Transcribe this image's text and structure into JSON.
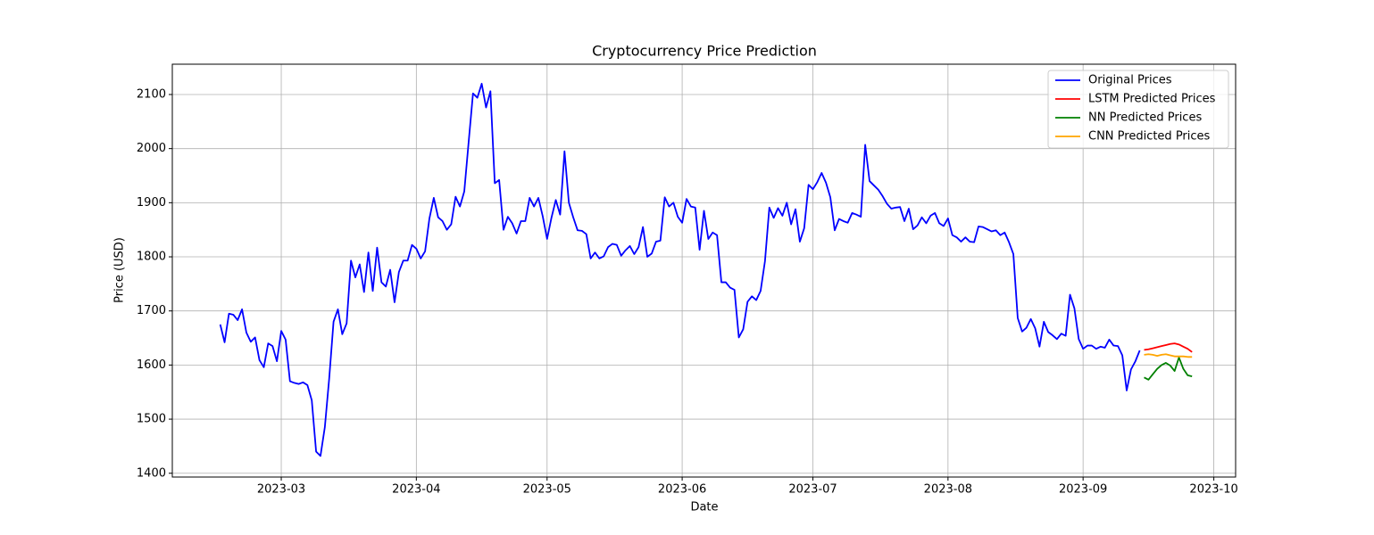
{
  "chart_data": {
    "type": "line",
    "title": "Cryptocurrency Price Prediction",
    "xlabel": "Date",
    "ylabel": "Price (USD)",
    "grid": true,
    "legend": "upper right",
    "xlim": [
      "2023-02-04",
      "2023-10-06"
    ],
    "ylim": [
      1393,
      2156
    ],
    "xticks": [
      {
        "value": "2023-03-01",
        "label": "2023-03"
      },
      {
        "value": "2023-04-01",
        "label": "2023-04"
      },
      {
        "value": "2023-05-01",
        "label": "2023-05"
      },
      {
        "value": "2023-06-01",
        "label": "2023-06"
      },
      {
        "value": "2023-07-01",
        "label": "2023-07"
      },
      {
        "value": "2023-08-01",
        "label": "2023-08"
      },
      {
        "value": "2023-09-01",
        "label": "2023-09"
      },
      {
        "value": "2023-10-01",
        "label": "2023-10"
      }
    ],
    "yticks": [
      1400,
      1500,
      1600,
      1700,
      1800,
      1900,
      2000,
      2100
    ],
    "series": [
      {
        "name": "Original Prices",
        "color": "#0000ff",
        "x": [
          "2023-02-15",
          "2023-02-16",
          "2023-02-17",
          "2023-02-18",
          "2023-02-19",
          "2023-02-20",
          "2023-02-21",
          "2023-02-22",
          "2023-02-23",
          "2023-02-24",
          "2023-02-25",
          "2023-02-26",
          "2023-02-27",
          "2023-02-28",
          "2023-03-01",
          "2023-03-02",
          "2023-03-03",
          "2023-03-04",
          "2023-03-05",
          "2023-03-06",
          "2023-03-07",
          "2023-03-08",
          "2023-03-09",
          "2023-03-10",
          "2023-03-11",
          "2023-03-12",
          "2023-03-13",
          "2023-03-14",
          "2023-03-15",
          "2023-03-16",
          "2023-03-17",
          "2023-03-18",
          "2023-03-19",
          "2023-03-20",
          "2023-03-21",
          "2023-03-22",
          "2023-03-23",
          "2023-03-24",
          "2023-03-25",
          "2023-03-26",
          "2023-03-27",
          "2023-03-28",
          "2023-03-29",
          "2023-03-30",
          "2023-03-31",
          "2023-04-01",
          "2023-04-02",
          "2023-04-03",
          "2023-04-04",
          "2023-04-05",
          "2023-04-06",
          "2023-04-07",
          "2023-04-08",
          "2023-04-09",
          "2023-04-10",
          "2023-04-11",
          "2023-04-12",
          "2023-04-13",
          "2023-04-14",
          "2023-04-15",
          "2023-04-16",
          "2023-04-17",
          "2023-04-18",
          "2023-04-19",
          "2023-04-20",
          "2023-04-21",
          "2023-04-22",
          "2023-04-23",
          "2023-04-24",
          "2023-04-25",
          "2023-04-26",
          "2023-04-27",
          "2023-04-28",
          "2023-04-29",
          "2023-04-30",
          "2023-05-01",
          "2023-05-02",
          "2023-05-03",
          "2023-05-04",
          "2023-05-05",
          "2023-05-06",
          "2023-05-07",
          "2023-05-08",
          "2023-05-09",
          "2023-05-10",
          "2023-05-11",
          "2023-05-12",
          "2023-05-13",
          "2023-05-14",
          "2023-05-15",
          "2023-05-16",
          "2023-05-17",
          "2023-05-18",
          "2023-05-19",
          "2023-05-20",
          "2023-05-21",
          "2023-05-22",
          "2023-05-23",
          "2023-05-24",
          "2023-05-25",
          "2023-05-26",
          "2023-05-27",
          "2023-05-28",
          "2023-05-29",
          "2023-05-30",
          "2023-05-31",
          "2023-06-01",
          "2023-06-02",
          "2023-06-03",
          "2023-06-04",
          "2023-06-05",
          "2023-06-06",
          "2023-06-07",
          "2023-06-08",
          "2023-06-09",
          "2023-06-10",
          "2023-06-11",
          "2023-06-12",
          "2023-06-13",
          "2023-06-14",
          "2023-06-15",
          "2023-06-16",
          "2023-06-17",
          "2023-06-18",
          "2023-06-19",
          "2023-06-20",
          "2023-06-21",
          "2023-06-22",
          "2023-06-23",
          "2023-06-24",
          "2023-06-25",
          "2023-06-26",
          "2023-06-27",
          "2023-06-28",
          "2023-06-29",
          "2023-06-30",
          "2023-07-01",
          "2023-07-02",
          "2023-07-03",
          "2023-07-04",
          "2023-07-05",
          "2023-07-06",
          "2023-07-07",
          "2023-07-08",
          "2023-07-09",
          "2023-07-10",
          "2023-07-11",
          "2023-07-12",
          "2023-07-13",
          "2023-07-14",
          "2023-07-15",
          "2023-07-16",
          "2023-07-17",
          "2023-07-18",
          "2023-07-19",
          "2023-07-20",
          "2023-07-21",
          "2023-07-22",
          "2023-07-23",
          "2023-07-24",
          "2023-07-25",
          "2023-07-26",
          "2023-07-27",
          "2023-07-28",
          "2023-07-29",
          "2023-07-30",
          "2023-07-31",
          "2023-08-01",
          "2023-08-02",
          "2023-08-03",
          "2023-08-04",
          "2023-08-05",
          "2023-08-06",
          "2023-08-07",
          "2023-08-08",
          "2023-08-09",
          "2023-08-10",
          "2023-08-11",
          "2023-08-12",
          "2023-08-13",
          "2023-08-14",
          "2023-08-15",
          "2023-08-16",
          "2023-08-17",
          "2023-08-18",
          "2023-08-19",
          "2023-08-20",
          "2023-08-21",
          "2023-08-22",
          "2023-08-23",
          "2023-08-24",
          "2023-08-25",
          "2023-08-26",
          "2023-08-27",
          "2023-08-28",
          "2023-08-29",
          "2023-08-30",
          "2023-08-31",
          "2023-09-01",
          "2023-09-02",
          "2023-09-03",
          "2023-09-04",
          "2023-09-05",
          "2023-09-06",
          "2023-09-07",
          "2023-09-08",
          "2023-09-09",
          "2023-09-10",
          "2023-09-11",
          "2023-09-12",
          "2023-09-13",
          "2023-09-14"
        ],
        "values": [
          1675,
          1642,
          1695,
          1693,
          1683,
          1703,
          1660,
          1643,
          1651,
          1609,
          1596,
          1640,
          1635,
          1607,
          1663,
          1647,
          1570,
          1567,
          1565,
          1568,
          1563,
          1535,
          1440,
          1432,
          1485,
          1575,
          1680,
          1703,
          1657,
          1677,
          1793,
          1762,
          1786,
          1735,
          1808,
          1737,
          1817,
          1753,
          1745,
          1776,
          1716,
          1772,
          1793,
          1793,
          1822,
          1815,
          1797,
          1810,
          1871,
          1909,
          1873,
          1866,
          1850,
          1860,
          1911,
          1893,
          1921,
          2012,
          2102,
          2094,
          2120,
          2076,
          2106,
          1936,
          1942,
          1850,
          1874,
          1862,
          1843,
          1866,
          1866,
          1909,
          1893,
          1909,
          1875,
          1833,
          1872,
          1905,
          1878,
          1995,
          1900,
          1873,
          1849,
          1848,
          1842,
          1797,
          1808,
          1797,
          1801,
          1818,
          1824,
          1822,
          1802,
          1812,
          1820,
          1805,
          1818,
          1855,
          1800,
          1806,
          1828,
          1830,
          1910,
          1893,
          1900,
          1874,
          1863,
          1907,
          1893,
          1891,
          1813,
          1885,
          1833,
          1845,
          1840,
          1753,
          1753,
          1743,
          1739,
          1651,
          1666,
          1717,
          1727,
          1720,
          1737,
          1792,
          1891,
          1872,
          1890,
          1876,
          1900,
          1860,
          1888,
          1828,
          1853,
          1933,
          1925,
          1938,
          1955,
          1937,
          1910,
          1849,
          1870,
          1866,
          1863,
          1881,
          1878,
          1874,
          2007,
          1940,
          1932,
          1924,
          1912,
          1898,
          1889,
          1891,
          1892,
          1866,
          1889,
          1851,
          1858,
          1873,
          1862,
          1876,
          1881,
          1862,
          1857,
          1871,
          1840,
          1836,
          1828,
          1836,
          1828,
          1827,
          1856,
          1855,
          1851,
          1847,
          1849,
          1840,
          1845,
          1827,
          1805,
          1687,
          1662,
          1669,
          1685,
          1668,
          1634,
          1680,
          1661,
          1655,
          1648,
          1658,
          1654,
          1730,
          1705,
          1648,
          1630,
          1636,
          1636,
          1630,
          1634,
          1632,
          1647,
          1636,
          1635,
          1618,
          1553,
          1592,
          1607,
          1627
        ]
      },
      {
        "name": "LSTM Predicted Prices",
        "color": "#ff0000",
        "x": [
          "2023-09-15",
          "2023-09-16",
          "2023-09-17",
          "2023-09-18",
          "2023-09-19",
          "2023-09-20",
          "2023-09-21",
          "2023-09-22",
          "2023-09-23",
          "2023-09-24",
          "2023-09-25",
          "2023-09-26"
        ],
        "values": [
          1628,
          1629,
          1631,
          1633,
          1635,
          1637,
          1639,
          1640,
          1638,
          1634,
          1630,
          1624
        ]
      },
      {
        "name": "NN Predicted Prices",
        "color": "#008000",
        "x": [
          "2023-09-15",
          "2023-09-16",
          "2023-09-17",
          "2023-09-18",
          "2023-09-19",
          "2023-09-20",
          "2023-09-21",
          "2023-09-22",
          "2023-09-23",
          "2023-09-24",
          "2023-09-25",
          "2023-09-26"
        ],
        "values": [
          1577,
          1573,
          1583,
          1593,
          1600,
          1604,
          1599,
          1589,
          1614,
          1593,
          1581,
          1579
        ]
      },
      {
        "name": "CNN Predicted Prices",
        "color": "#ffa500",
        "x": [
          "2023-09-15",
          "2023-09-16",
          "2023-09-17",
          "2023-09-18",
          "2023-09-19",
          "2023-09-20",
          "2023-09-21",
          "2023-09-22",
          "2023-09-23",
          "2023-09-24",
          "2023-09-25",
          "2023-09-26"
        ],
        "values": [
          1619,
          1620,
          1619,
          1617,
          1619,
          1620,
          1618,
          1616,
          1616,
          1616,
          1615,
          1615
        ]
      }
    ]
  }
}
